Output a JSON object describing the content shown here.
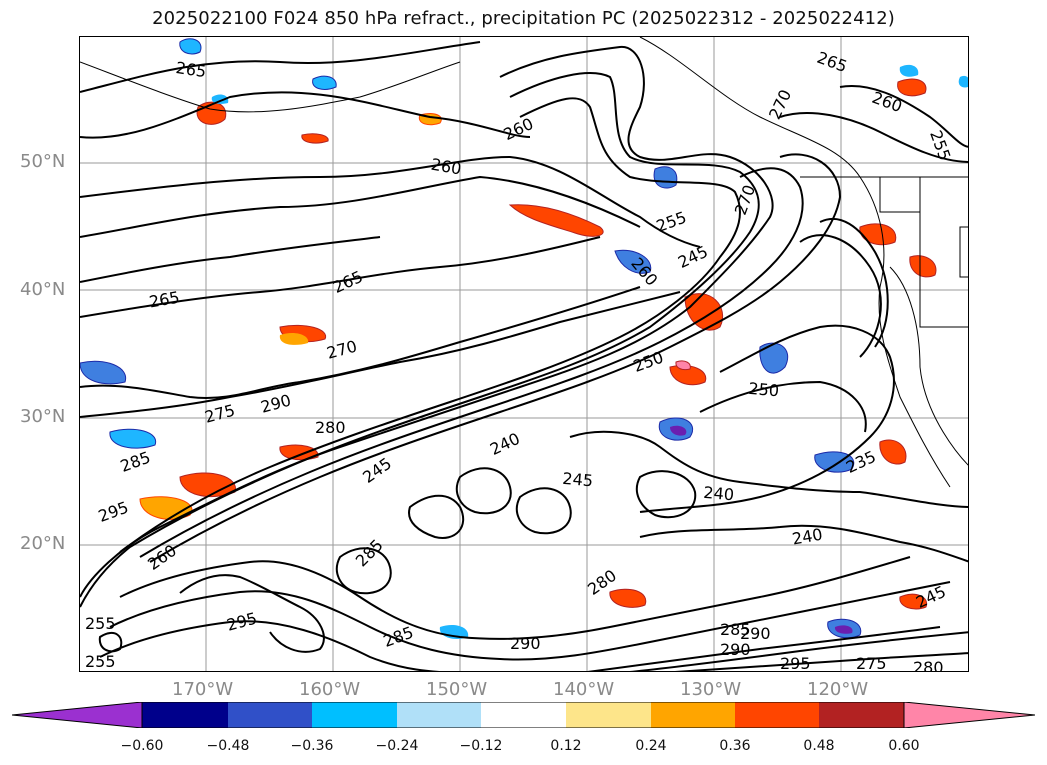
{
  "title": "2025022100 F024 850 hPa refract., precipitation PC (2025022312 - 2025022412)",
  "lat_labels": [
    "50°N",
    "40°N",
    "30°N",
    "20°N"
  ],
  "lon_labels": [
    "170°W",
    "160°W",
    "150°W",
    "140°W",
    "130°W",
    "120°W"
  ],
  "contour_labels": [
    "265",
    "260",
    "270",
    "265",
    "260",
    "255",
    "260",
    "255",
    "270",
    "245",
    "265",
    "260",
    "265",
    "270",
    "275",
    "290",
    "280",
    "250",
    "250",
    "240",
    "245",
    "235",
    "240",
    "245",
    "285",
    "295",
    "240",
    "285",
    "295",
    "280",
    "285",
    "290",
    "290",
    "285",
    "290",
    "295",
    "275",
    "280",
    "245",
    "255",
    "255",
    "260"
  ],
  "colorbar": {
    "ticks": [
      "−0.60",
      "−0.48",
      "−0.36",
      "−0.24",
      "−0.12",
      "0.12",
      "0.24",
      "0.36",
      "0.48",
      "0.60"
    ],
    "colors": [
      "#9b30d0",
      "#00008b",
      "#3050c8",
      "#00bfff",
      "#b0e0f8",
      "#ffffff",
      "#fde58a",
      "#ffa500",
      "#ff4500",
      "#b22222",
      "#ff85a8",
      "#ff85a8"
    ]
  },
  "legend_colors": {
    "precip_purple": "#6a1fb0",
    "precip_darkblue": "#1c2aa8",
    "precip_blue": "#3f7fe0",
    "precip_cyan": "#1eb6ff",
    "precip_lightblue": "#a6dcf6",
    "precip_yellow": "#fde58a",
    "precip_orange": "#ffa500",
    "precip_red": "#ff4500",
    "precip_darkred": "#b22222",
    "precip_pink": "#ff85a8",
    "contour": "#000000",
    "gridline": "#9a9a9a"
  }
}
